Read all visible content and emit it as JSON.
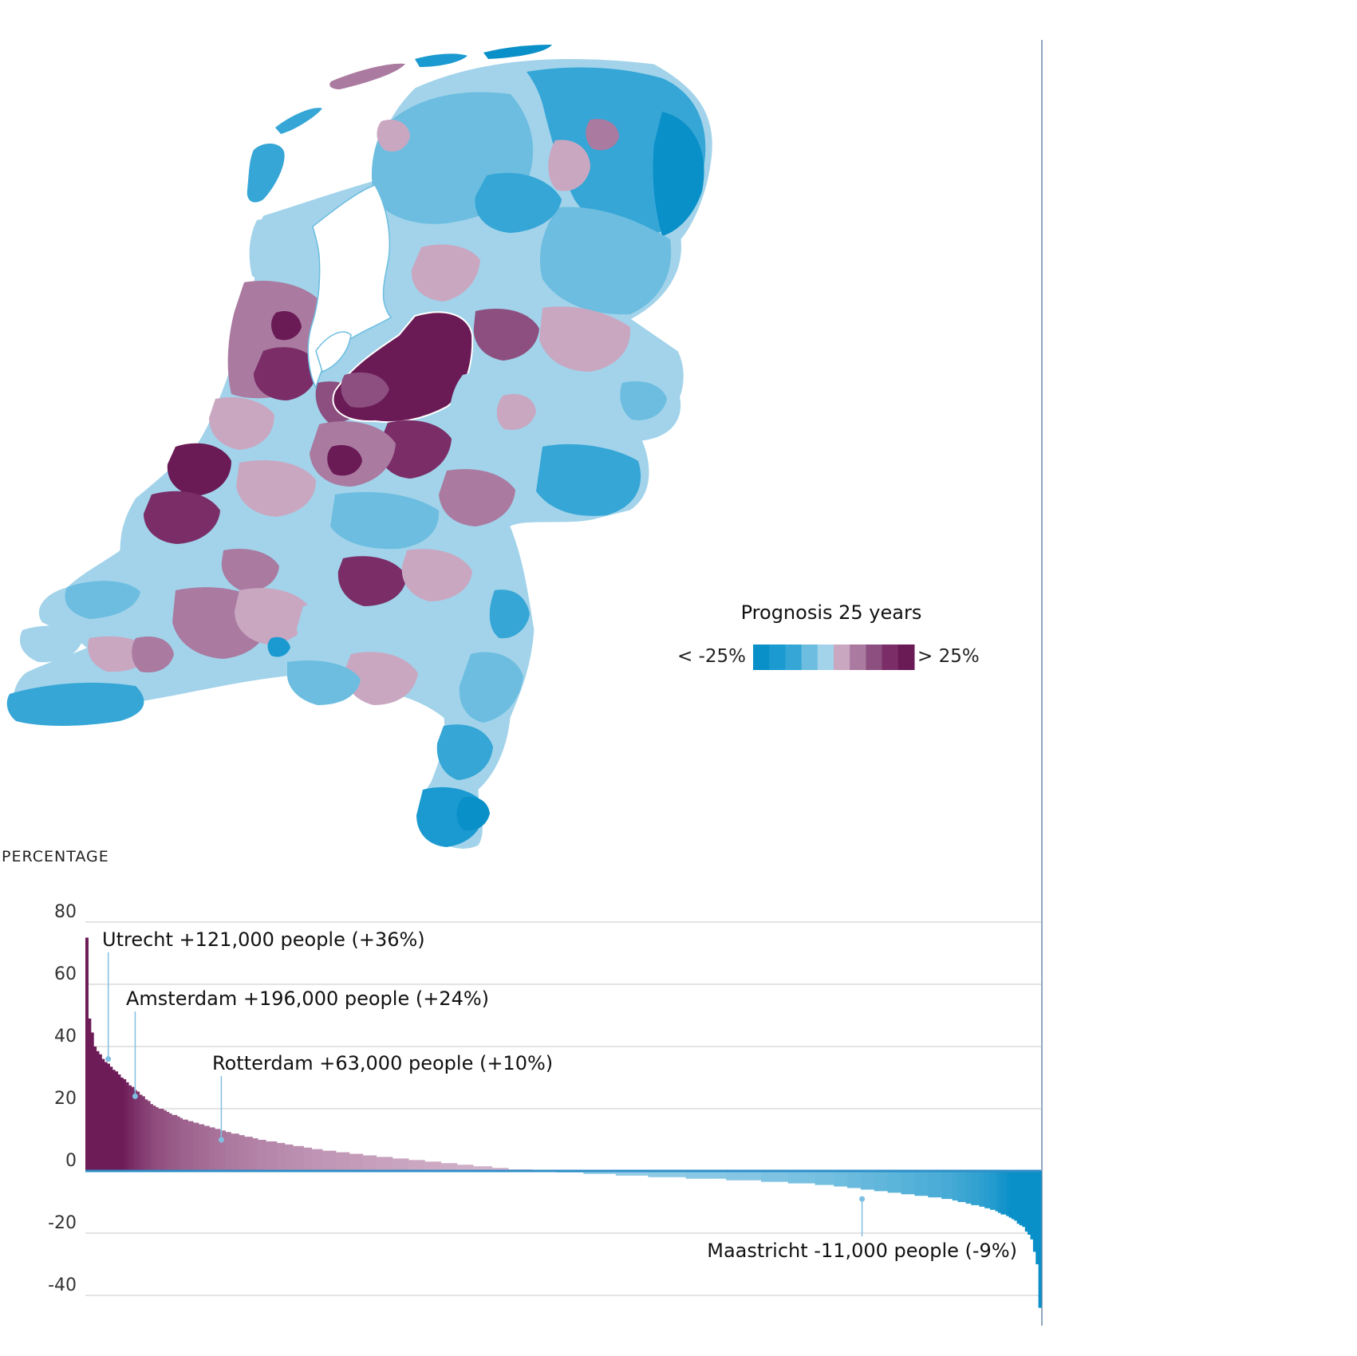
{
  "legend": {
    "title": "Prognosis 25 years",
    "low_label": "< -25%",
    "high_label": "> 25%",
    "colors": [
      "#0a90c8",
      "#1a9ad0",
      "#35a6d6",
      "#6cbde0",
      "#a2d3ea",
      "#c9a7c1",
      "#aa7aa0",
      "#8c4f7f",
      "#7a2d67",
      "#6a1a55"
    ]
  },
  "map": {
    "regions_shown": "Netherlands municipalities",
    "colors": {
      "strong_decline": "#0a90c8",
      "decline": "#35a6d6",
      "slight_decline": "#6cbde0",
      "stable_low": "#a2d3ea",
      "slight_growth": "#c9a7c1",
      "growth": "#aa7aa0",
      "strong_growth": "#7a2d67"
    }
  },
  "chart_data": {
    "type": "bar",
    "unit_label": "PERCENTAGE",
    "ylim": [
      -45,
      80
    ],
    "yticks": [
      80,
      60,
      40,
      20,
      0,
      -20,
      -40
    ],
    "grid": true,
    "sorted_descending": true,
    "n_bars": 355,
    "series": [
      {
        "values_description": "percentage change per municipality, sorted high to low"
      }
    ],
    "profile": [
      [
        0,
        75
      ],
      [
        1,
        49
      ],
      [
        3,
        40
      ],
      [
        6,
        36
      ],
      [
        12,
        31
      ],
      [
        18,
        26
      ],
      [
        25,
        21
      ],
      [
        35,
        17
      ],
      [
        50,
        13
      ],
      [
        65,
        10
      ],
      [
        85,
        7
      ],
      [
        110,
        4.5
      ],
      [
        140,
        2
      ],
      [
        160,
        0.5
      ],
      [
        170,
        0
      ],
      [
        185,
        -0.8
      ],
      [
        215,
        -2
      ],
      [
        245,
        -3
      ],
      [
        275,
        -4.5
      ],
      [
        300,
        -7
      ],
      [
        320,
        -9
      ],
      [
        335,
        -12
      ],
      [
        343,
        -15
      ],
      [
        348,
        -18
      ],
      [
        351,
        -22
      ],
      [
        353,
        -30
      ],
      [
        354,
        -44
      ]
    ],
    "positive_color_start": "#6e1c58",
    "positive_color_end": "#d7b9d0",
    "negative_color_start": "#a2d3ea",
    "negative_color_end": "#0a90c8",
    "zero_line_color": "#2e8ec7",
    "annotations": [
      {
        "label": "Utrecht +121,000 people (+36%)",
        "rank": 8,
        "value": 36
      },
      {
        "label": "Amsterdam +196,000 people (+24%)",
        "rank": 18,
        "value": 24
      },
      {
        "label": "Rotterdam +63,000 people (+10%)",
        "rank": 50,
        "value": 10
      },
      {
        "label": "Maastricht -11,000 people (-9%)",
        "rank": 288,
        "value": -9
      }
    ]
  }
}
